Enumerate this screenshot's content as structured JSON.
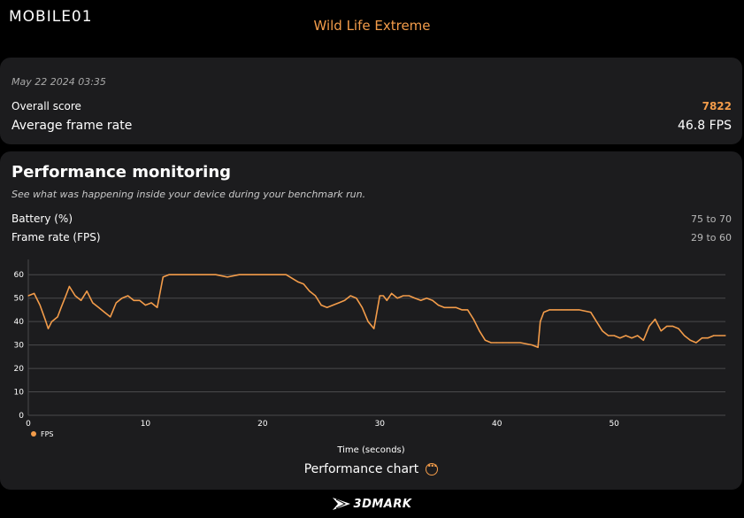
{
  "logo": {
    "text": "MOBILE01"
  },
  "header": {
    "title": "Wild Life Extreme"
  },
  "summary": {
    "date": "May 22 2024 03:35",
    "overall_label": "Overall score",
    "overall_value": "7822",
    "avg_label": "Average frame rate",
    "avg_value": "46.8 FPS"
  },
  "performance": {
    "title": "Performance monitoring",
    "subtitle": "See what was happening inside your device during your benchmark run.",
    "battery_label": "Battery (%)",
    "battery_value": "75 to 70",
    "framerate_label": "Frame rate (FPS)",
    "framerate_value": "29 to 60",
    "chart_button_label": "Performance chart"
  },
  "footer": {
    "brand": "3DMARK"
  },
  "colors": {
    "accent": "#f39c4a",
    "card": "#1c1c1e",
    "background": "#000000"
  },
  "chart_data": {
    "type": "line",
    "title": "",
    "xlabel": "Time (seconds)",
    "ylabel": "",
    "xlim": [
      0,
      59.5
    ],
    "ylim": [
      0,
      65
    ],
    "xticks": [
      0,
      10,
      20,
      30,
      40,
      50
    ],
    "yticks": [
      0,
      10,
      20,
      30,
      40,
      50,
      60
    ],
    "grid": true,
    "legend": [
      "FPS"
    ],
    "legend_position": "bottom-left",
    "series": [
      {
        "name": "FPS",
        "color": "#f39c4a",
        "x": [
          0,
          0.5,
          1,
          1.5,
          1.7,
          2,
          2.5,
          2.8,
          3.2,
          3.5,
          4,
          4.5,
          5,
          5.5,
          6,
          6.5,
          7,
          7.5,
          8,
          8.5,
          9,
          9.5,
          10,
          10.5,
          11,
          11.5,
          12,
          13,
          14,
          15,
          16,
          17,
          18,
          19,
          20,
          21,
          22,
          23,
          23.5,
          24,
          24.5,
          25,
          25.5,
          26,
          26.5,
          27,
          27.5,
          28,
          28.5,
          29,
          29.5,
          30,
          30.3,
          30.6,
          31,
          31.5,
          32,
          32.5,
          33,
          33.5,
          34,
          34.5,
          35,
          35.5,
          36,
          36.5,
          37,
          37.5,
          38,
          38.5,
          39,
          39.5,
          40,
          40.5,
          41,
          42,
          43,
          43.5,
          43.7,
          44,
          44.5,
          45,
          45.5,
          46,
          47,
          48,
          48.5,
          49,
          49.5,
          50,
          50.5,
          51,
          51.5,
          52,
          52.5,
          53,
          53.5,
          54,
          54.5,
          55,
          55.5,
          56,
          56.5,
          57,
          57.5,
          58,
          58.5,
          59,
          59.5
        ],
        "values": [
          51,
          52,
          47,
          40,
          37,
          40,
          42,
          46,
          51,
          55,
          51,
          49,
          53,
          48,
          46,
          44,
          42,
          48,
          50,
          51,
          49,
          49,
          47,
          48,
          46,
          59,
          60,
          60,
          60,
          60,
          60,
          59,
          60,
          60,
          60,
          60,
          60,
          57,
          56,
          53,
          51,
          47,
          46,
          47,
          48,
          49,
          51,
          50,
          46,
          40,
          37,
          51,
          51,
          49,
          52,
          50,
          51,
          51,
          50,
          49,
          50,
          49,
          47,
          46,
          46,
          46,
          45,
          45,
          41,
          36,
          32,
          31,
          31,
          31,
          31,
          31,
          30,
          29,
          40,
          44,
          45,
          45,
          45,
          45,
          45,
          44,
          40,
          36,
          34,
          34,
          33,
          34,
          33,
          34,
          32,
          38,
          41,
          36,
          38,
          38,
          37,
          34,
          32,
          31,
          33,
          33,
          34,
          34,
          34
        ]
      }
    ]
  }
}
